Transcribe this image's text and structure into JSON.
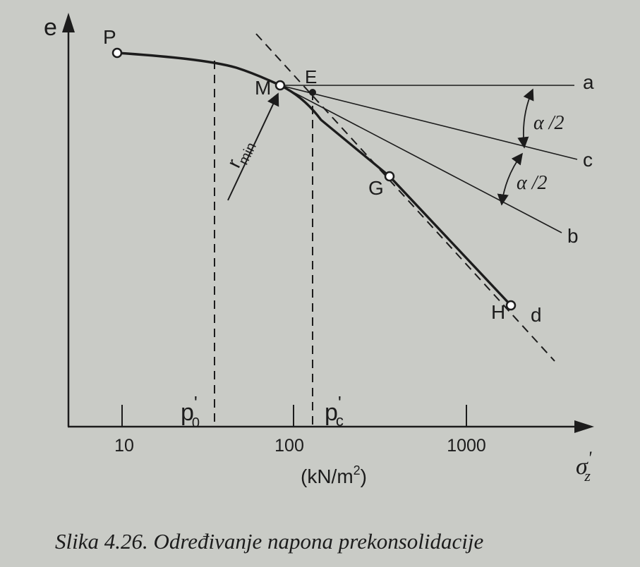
{
  "axes": {
    "y_label": "e",
    "x_label_main": "σ",
    "x_label_sup": "'",
    "x_label_sub": "z",
    "ticks": [
      "10",
      "100",
      "1000"
    ],
    "unit_prefix": "(kN/m",
    "unit_sup": "2",
    "unit_suffix": ")"
  },
  "markers": {
    "p0_main": "p",
    "p0_sup": "'",
    "p0_sub": "0",
    "pc_main": "p",
    "pc_sup": "'",
    "pc_sub": "c"
  },
  "points": {
    "P": "P",
    "M": "M",
    "E": "E",
    "G": "G",
    "H": "H"
  },
  "lines": {
    "a": "a",
    "b": "b",
    "c": "c",
    "d": "d"
  },
  "angles": {
    "upper": "α /2",
    "lower": "α /2"
  },
  "radius": {
    "main": "r",
    "sub": "min"
  },
  "caption": "Slika 4.26. Određivanje napona prekonsolidacije",
  "colors": {
    "paper": "#c9cbc6",
    "ink": "#1c1c1c"
  }
}
